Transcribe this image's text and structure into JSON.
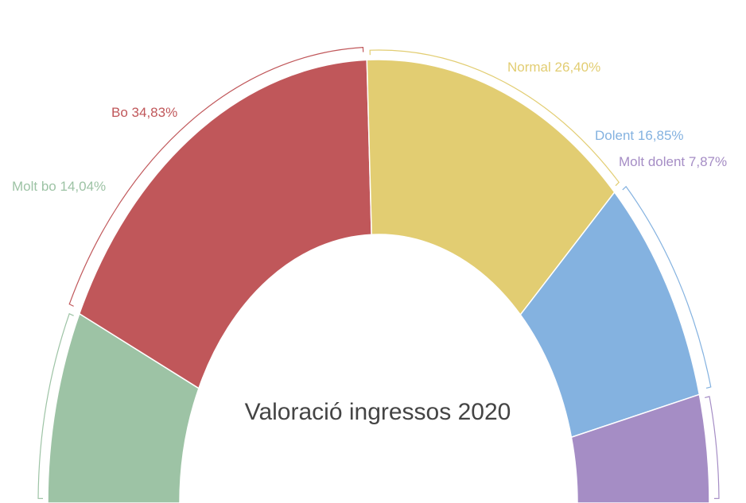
{
  "chart_data": {
    "type": "semi-donut",
    "title": "Valoració ingressos 2020",
    "categories": [
      "Molt bo",
      "Bo",
      "Normal",
      "Dolent",
      "Molt dolent"
    ],
    "values": [
      14.04,
      34.83,
      26.4,
      16.85,
      7.87
    ],
    "value_labels": [
      "14,04%",
      "34,83%",
      "26,40%",
      "16,85%",
      "7,87%"
    ],
    "colors": [
      "#9dc3a5",
      "#c0575a",
      "#e2cd72",
      "#84b2e0",
      "#a58dc5"
    ]
  }
}
